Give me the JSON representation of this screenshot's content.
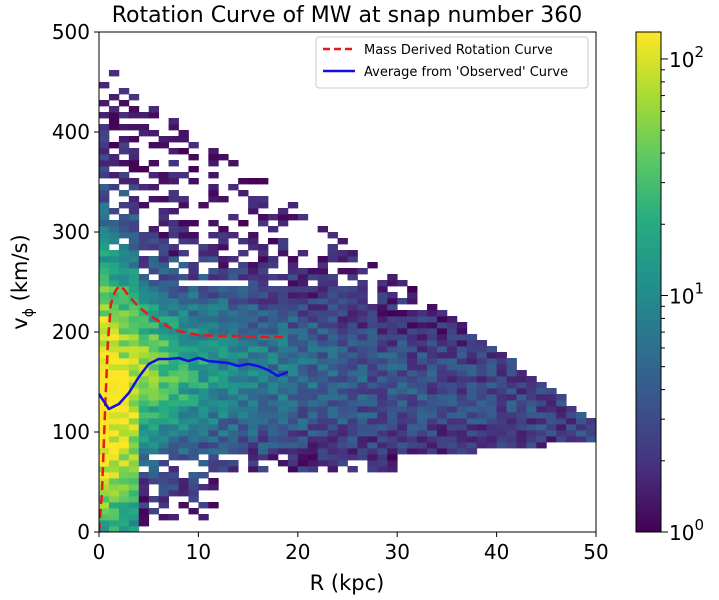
{
  "chart_data": {
    "type": "heatmap",
    "title": "Rotation Curve of MW at snap number 360",
    "xlabel": "R (kpc)",
    "ylabel_main": "v",
    "ylabel_sub": "ϕ",
    "ylabel_unit": " (km/s)",
    "xlim": [
      0,
      50
    ],
    "ylim": [
      0,
      500
    ],
    "x_ticks": [
      0,
      10,
      20,
      30,
      40,
      50
    ],
    "y_ticks": [
      0,
      100,
      200,
      300,
      400,
      500
    ],
    "grid": false,
    "colormap": "viridis",
    "color_scale": "log",
    "colorbar": {
      "range": [
        1,
        130
      ],
      "ticks": [
        {
          "base": "10",
          "exp": "0",
          "value": 1
        },
        {
          "base": "10",
          "exp": "1",
          "value": 10
        },
        {
          "base": "10",
          "exp": "2",
          "value": 100
        }
      ]
    },
    "legend": {
      "location": "upper right",
      "entries": [
        {
          "label": "Mass Derived Rotation Curve",
          "color": "#e41a1c",
          "style": "dashed"
        },
        {
          "label": "Average from 'Observed' Curve",
          "color": "#1010e6",
          "style": "solid"
        }
      ]
    },
    "series": [
      {
        "name": "Mass Derived Rotation Curve",
        "color": "#e41a1c",
        "style": "dashed",
        "x": [
          0,
          0.3,
          0.6,
          0.9,
          1.2,
          1.6,
          2.0,
          2.5,
          3,
          4,
          5,
          6,
          7,
          8,
          9,
          10,
          12,
          14,
          16,
          18,
          19
        ],
        "y": [
          0,
          40,
          120,
          190,
          228,
          240,
          246,
          243,
          236,
          225,
          217,
          211,
          205,
          201,
          199,
          197,
          196,
          196,
          195,
          195,
          195
        ]
      },
      {
        "name": "Average from 'Observed' Curve",
        "color": "#1010e6",
        "style": "solid",
        "x": [
          0,
          1,
          2,
          3,
          4,
          5,
          6,
          7,
          8,
          9,
          10,
          11,
          12,
          13,
          14,
          15,
          16,
          17,
          18,
          19
        ],
        "y": [
          138,
          123,
          128,
          139,
          155,
          168,
          173,
          173,
          174,
          171,
          174,
          171,
          170,
          169,
          166,
          168,
          166,
          162,
          156,
          160
        ]
      }
    ],
    "heatmap_bins": {
      "x_bin_width": 1,
      "y_bin_width": 6
    }
  }
}
